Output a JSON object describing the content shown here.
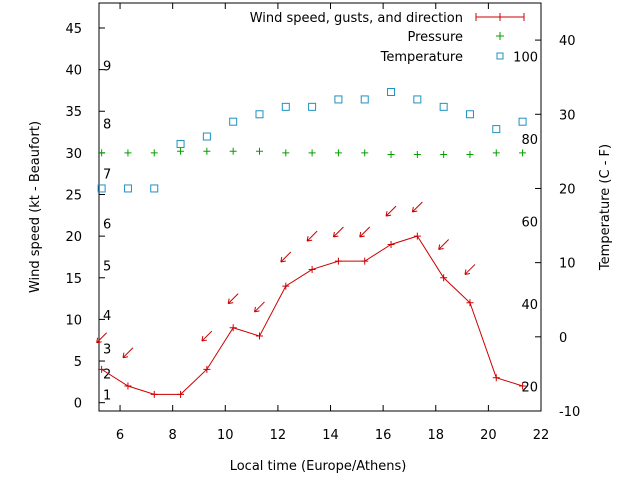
{
  "chart_data": {
    "type": "line",
    "xlabel": "Local time (Europe/Athens)",
    "ylabel_left": "Wind speed (kt - Beaufort)",
    "ylabel_right": "Temperature (C - F)",
    "xlim": [
      5.2,
      22
    ],
    "ylim_left": [
      -1,
      48
    ],
    "ylim_right": [
      -10,
      45
    ],
    "x_ticks": [
      "6",
      "8",
      "10",
      "12",
      "14",
      "16",
      "18",
      "20",
      "22"
    ],
    "y_ticks_left": [
      "0",
      "5",
      "10",
      "15",
      "20",
      "25",
      "30",
      "35",
      "40",
      "45"
    ],
    "y_ticks_right": [
      "-10",
      "0",
      "10",
      "20",
      "30",
      "40"
    ],
    "beaufort_labels": [
      "1",
      "2",
      "3",
      "4",
      "5",
      "6",
      "7",
      "8",
      "9"
    ],
    "fahrenheit_labels": [
      "20",
      "40",
      "60",
      "80",
      "100"
    ],
    "legend_position": "top-right",
    "series": [
      {
        "name": "Wind speed, gusts, and direction",
        "color": "#cc0000",
        "x": [
          5.3,
          6.3,
          7.3,
          8.3,
          9.3,
          10.3,
          11.3,
          12.3,
          13.3,
          14.3,
          15.3,
          16.3,
          17.3,
          18.3,
          19.3,
          20.3,
          21.3
        ],
        "values": [
          4,
          2,
          1,
          1,
          4,
          9,
          8,
          14,
          16,
          17,
          17,
          19,
          20,
          15,
          12,
          3,
          2
        ],
        "direction_arrow_y": [
          7.8,
          6,
          null,
          null,
          8,
          12.5,
          11.5,
          17.5,
          20,
          20.5,
          20.5,
          23,
          23.5,
          19,
          16,
          null,
          null
        ]
      },
      {
        "name": "Pressure",
        "color": "#00a000",
        "x": [
          5.3,
          6.3,
          7.3,
          8.3,
          9.3,
          10.3,
          11.3,
          12.3,
          13.3,
          14.3,
          15.3,
          16.3,
          17.3,
          18.3,
          19.3,
          20.3,
          21.3
        ],
        "values": [
          30,
          30,
          30,
          30.2,
          30.2,
          30.2,
          30.2,
          30,
          30,
          30,
          30,
          29.8,
          29.8,
          29.8,
          29.8,
          30,
          30
        ]
      },
      {
        "name": "Temperature",
        "color": "#2090c0",
        "x": [
          5.3,
          6.3,
          7.3,
          8.3,
          9.3,
          10.3,
          11.3,
          12.3,
          13.3,
          14.3,
          15.3,
          16.3,
          17.3,
          18.3,
          19.3,
          20.3,
          21.3
        ],
        "values": [
          20,
          20,
          20,
          26,
          27,
          29,
          30,
          31,
          31,
          32,
          32,
          33,
          32,
          31,
          30,
          28,
          29
        ]
      }
    ]
  }
}
